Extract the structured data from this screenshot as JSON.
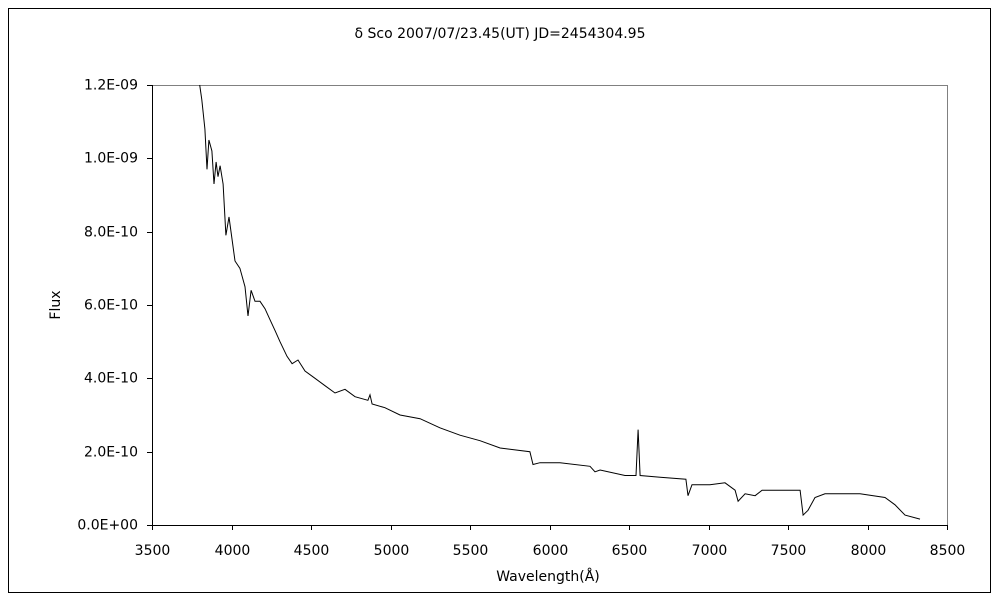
{
  "chart_data": {
    "type": "line",
    "title": "δ Sco    2007/07/23.45(UT)  JD=2454304.95",
    "x_label": "Wavelength(Å)",
    "y_label": "Flux",
    "xlim": [
      3500,
      8500
    ],
    "xticks": [
      3500,
      4000,
      4500,
      5000,
      5500,
      6000,
      6500,
      7000,
      7500,
      8000,
      8500
    ],
    "ylim": [
      0,
      1.2e-09
    ],
    "yticks": [
      {
        "value": 0,
        "label": "0.0E+00"
      },
      {
        "value": 2e-10,
        "label": "2.0E-10"
      },
      {
        "value": 4e-10,
        "label": "4.0E-10"
      },
      {
        "value": 6e-10,
        "label": "6.0E-10"
      },
      {
        "value": 8e-10,
        "label": "8.0E-10"
      },
      {
        "value": 1e-09,
        "label": "1.0E-09"
      },
      {
        "value": 1.2e-09,
        "label": "1.2E-09"
      }
    ],
    "grid": false,
    "series": [
      {
        "color": "#000000",
        "x": [
          3800,
          3813,
          3833,
          3846,
          3858,
          3877,
          3890,
          3903,
          3915,
          3928,
          3947,
          3965,
          3984,
          4003,
          4022,
          4053,
          4085,
          4104,
          4123,
          4148,
          4179,
          4211,
          4242,
          4274,
          4305,
          4349,
          4381,
          4418,
          4462,
          4525,
          4588,
          4651,
          4714,
          4777,
          4858,
          4871,
          4884,
          4965,
          5060,
          5186,
          5311,
          5437,
          5563,
          5689,
          5877,
          5896,
          5940,
          6066,
          6255,
          6286,
          6318,
          6475,
          6544,
          6557,
          6570,
          6696,
          6858,
          6871,
          6896,
          7009,
          7104,
          7167,
          7186,
          7230,
          7293,
          7337,
          7450,
          7576,
          7595,
          7626,
          7670,
          7733,
          7953,
          8110,
          8173,
          8236,
          8330
        ],
        "values": [
          1.2e-09,
          1.16e-09,
          1.08e-09,
          9.7e-10,
          1.05e-09,
          1.02e-09,
          9.3e-10,
          9.9e-10,
          9.5e-10,
          9.8e-10,
          9.3e-10,
          7.9e-10,
          8.4e-10,
          7.8e-10,
          7.2e-10,
          7e-10,
          6.5e-10,
          5.7e-10,
          6.4e-10,
          6.1e-10,
          6.1e-10,
          5.9e-10,
          5.6e-10,
          5.3e-10,
          5e-10,
          4.6e-10,
          4.4e-10,
          4.5e-10,
          4.2e-10,
          4e-10,
          3.8e-10,
          3.6e-10,
          3.7e-10,
          3.5e-10,
          3.4e-10,
          3.55e-10,
          3.3e-10,
          3.2e-10,
          3e-10,
          2.9e-10,
          2.65e-10,
          2.45e-10,
          2.3e-10,
          2.1e-10,
          2e-10,
          1.65e-10,
          1.7e-10,
          1.7e-10,
          1.6e-10,
          1.45e-10,
          1.5e-10,
          1.35e-10,
          1.35e-10,
          2.6e-10,
          1.35e-10,
          1.3e-10,
          1.25e-10,
          8e-11,
          1.1e-10,
          1.1e-10,
          1.15e-10,
          9.5e-11,
          6.5e-11,
          8.5e-11,
          8e-11,
          9.5e-11,
          9.5e-11,
          9.5e-11,
          2.7e-11,
          4e-11,
          7.5e-11,
          8.5e-11,
          8.5e-11,
          7.5e-11,
          5.5e-11,
          2.7e-11,
          1.6e-11
        ]
      }
    ]
  }
}
